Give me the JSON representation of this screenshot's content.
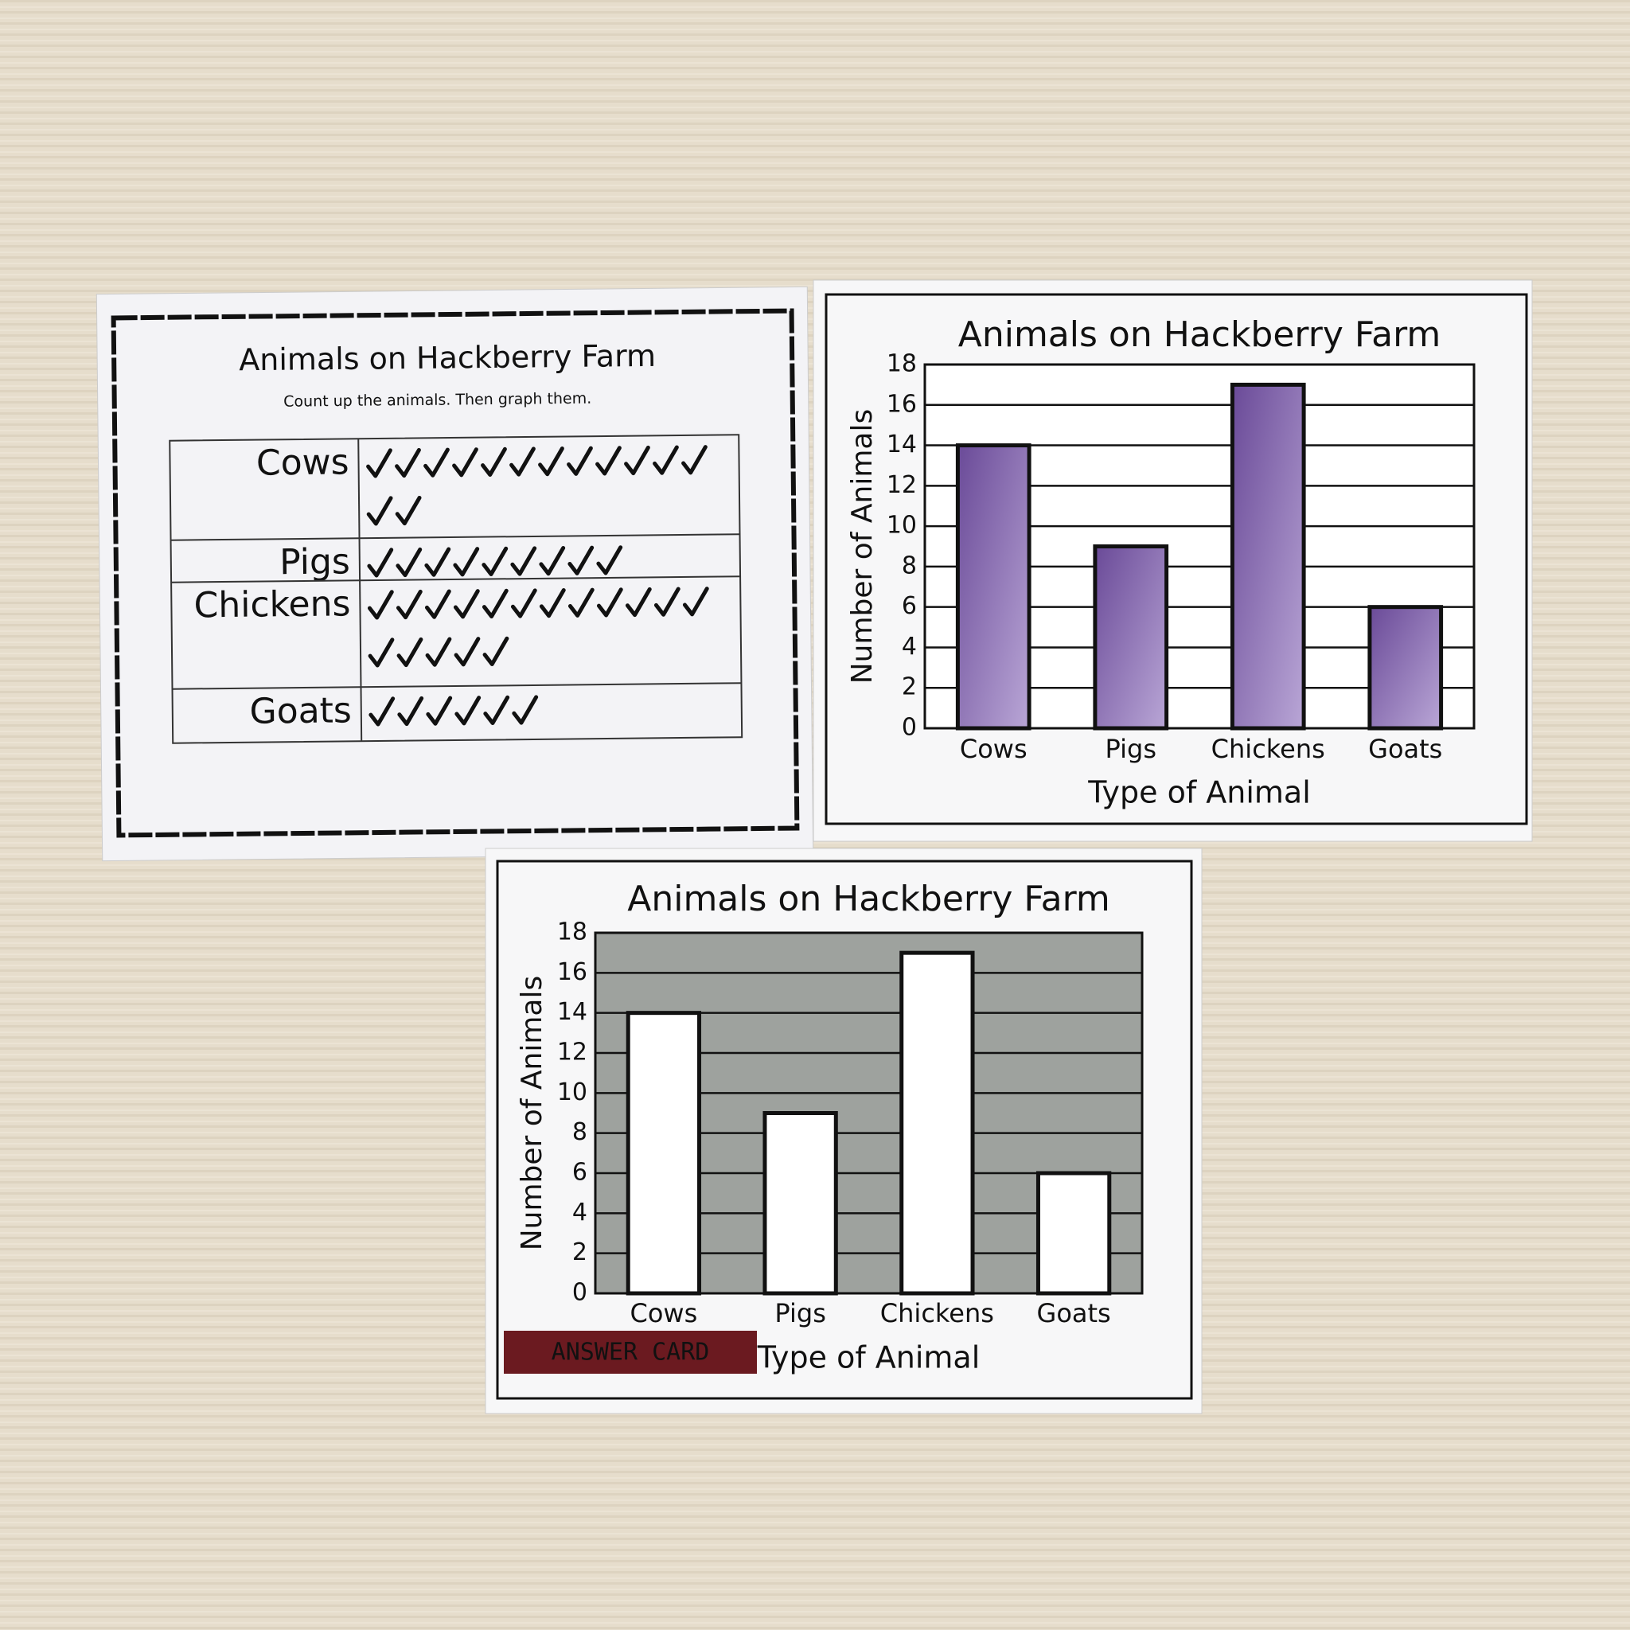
{
  "tally_card": {
    "title": "Animals on Hackberry Farm",
    "subtitle": "Count up the animals. Then graph them.",
    "rows": [
      {
        "label": "Cows",
        "count": 14
      },
      {
        "label": "Pigs",
        "count": 9
      },
      {
        "label": "Chickens",
        "count": 17
      },
      {
        "label": "Goats",
        "count": 6
      }
    ]
  },
  "chart_data": [
    {
      "type": "bar",
      "title": "Animals on Hackberry Farm",
      "x_label": "Type of Animal",
      "y_label": "Number of Animals",
      "categories": [
        "Cows",
        "Pigs",
        "Chickens",
        "Goats"
      ],
      "values": [
        14,
        9,
        17,
        6
      ],
      "color": "#7a5ba8",
      "plot_background": "#ffffff",
      "ylim": [
        0,
        18
      ],
      "yticks": [
        0,
        2,
        4,
        6,
        8,
        10,
        12,
        14,
        16,
        18
      ],
      "grid": true
    },
    {
      "type": "bar",
      "title": "Animals on Hackberry Farm",
      "x_label": "Type of Animal",
      "y_label": "Number of Animals",
      "categories": [
        "Cows",
        "Pigs",
        "Chickens",
        "Goats"
      ],
      "values": [
        14,
        9,
        17,
        6
      ],
      "color": "#ffffff",
      "plot_background": "#9ea29e",
      "ylim": [
        0,
        18
      ],
      "yticks": [
        0,
        2,
        4,
        6,
        8,
        10,
        12,
        14,
        16,
        18
      ],
      "grid": true,
      "annotation": "ANSWER CARD"
    }
  ]
}
